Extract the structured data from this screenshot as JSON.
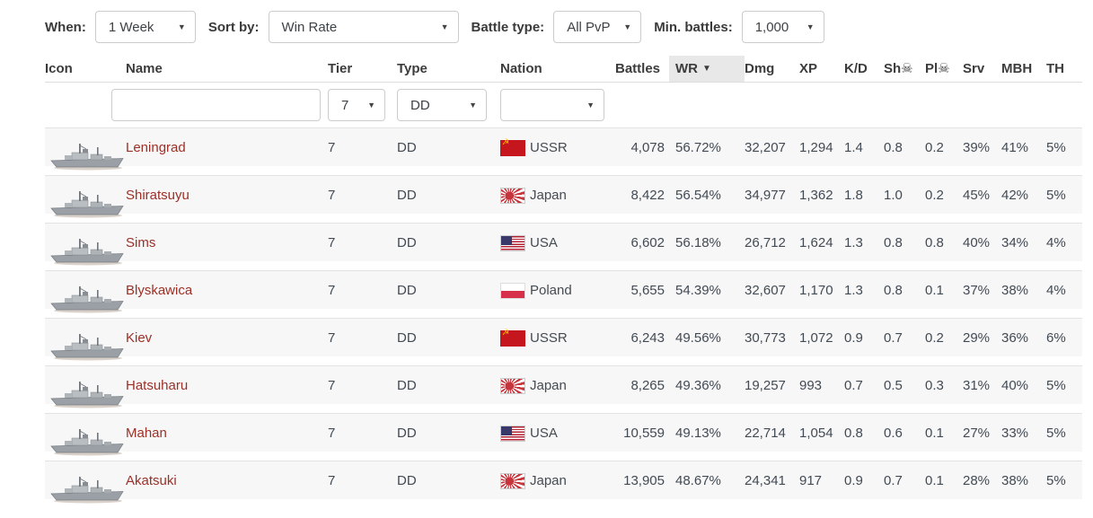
{
  "filters": {
    "when": {
      "label": "When:",
      "value": "1 Week"
    },
    "sort_by": {
      "label": "Sort by:",
      "value": "Win Rate"
    },
    "battle_type": {
      "label": "Battle type:",
      "value": "All PvP"
    },
    "min_battles": {
      "label": "Min. battles:",
      "value": "1,000"
    }
  },
  "icons": {
    "caret_down": "▼",
    "sort_desc": "▼",
    "skull": "☠"
  },
  "colors": {
    "ship_name": "#9c2f26",
    "row_background": "#f7f7f7",
    "sorted_header_background": "#e8e8e8",
    "ussr_flag_red": "#c6161d"
  },
  "table": {
    "columns": [
      {
        "key": "icon",
        "label": "Icon"
      },
      {
        "key": "name",
        "label": "Name"
      },
      {
        "key": "tier",
        "label": "Tier"
      },
      {
        "key": "type",
        "label": "Type"
      },
      {
        "key": "nation",
        "label": "Nation"
      },
      {
        "key": "battles",
        "label": "Battles"
      },
      {
        "key": "wr",
        "label": "WR",
        "sorted": true,
        "sort_icon": "▼"
      },
      {
        "key": "dmg",
        "label": "Dmg"
      },
      {
        "key": "xp",
        "label": "XP"
      },
      {
        "key": "kd",
        "label": "K/D"
      },
      {
        "key": "sh",
        "label": "Sh☠"
      },
      {
        "key": "pl",
        "label": "Pl☠"
      },
      {
        "key": "srv",
        "label": "Srv"
      },
      {
        "key": "mbh",
        "label": "MBH"
      },
      {
        "key": "th",
        "label": "TH"
      }
    ],
    "filter_row": {
      "name_value": "",
      "name_placeholder": "",
      "tier": "7",
      "type": "DD",
      "nation": ""
    },
    "rows": [
      {
        "name": "Leningrad",
        "tier": "7",
        "type": "DD",
        "nation": "USSR",
        "nation_key": "ussr",
        "battles": "4,078",
        "wr": "56.72%",
        "dmg": "32,207",
        "xp": "1,294",
        "kd": "1.4",
        "sh": "0.8",
        "pl": "0.2",
        "srv": "39%",
        "mbh": "41%",
        "th": "5%"
      },
      {
        "name": "Shiratsuyu",
        "tier": "7",
        "type": "DD",
        "nation": "Japan",
        "nation_key": "japan",
        "battles": "8,422",
        "wr": "56.54%",
        "dmg": "34,977",
        "xp": "1,362",
        "kd": "1.8",
        "sh": "1.0",
        "pl": "0.2",
        "srv": "45%",
        "mbh": "42%",
        "th": "5%"
      },
      {
        "name": "Sims",
        "tier": "7",
        "type": "DD",
        "nation": "USA",
        "nation_key": "usa",
        "battles": "6,602",
        "wr": "56.18%",
        "dmg": "26,712",
        "xp": "1,624",
        "kd": "1.3",
        "sh": "0.8",
        "pl": "0.8",
        "srv": "40%",
        "mbh": "34%",
        "th": "4%"
      },
      {
        "name": "Blyskawica",
        "tier": "7",
        "type": "DD",
        "nation": "Poland",
        "nation_key": "poland",
        "battles": "5,655",
        "wr": "54.39%",
        "dmg": "32,607",
        "xp": "1,170",
        "kd": "1.3",
        "sh": "0.8",
        "pl": "0.1",
        "srv": "37%",
        "mbh": "38%",
        "th": "4%"
      },
      {
        "name": "Kiev",
        "tier": "7",
        "type": "DD",
        "nation": "USSR",
        "nation_key": "ussr",
        "battles": "6,243",
        "wr": "49.56%",
        "dmg": "30,773",
        "xp": "1,072",
        "kd": "0.9",
        "sh": "0.7",
        "pl": "0.2",
        "srv": "29%",
        "mbh": "36%",
        "th": "6%"
      },
      {
        "name": "Hatsuharu",
        "tier": "7",
        "type": "DD",
        "nation": "Japan",
        "nation_key": "japan",
        "battles": "8,265",
        "wr": "49.36%",
        "dmg": "19,257",
        "xp": "993",
        "kd": "0.7",
        "sh": "0.5",
        "pl": "0.3",
        "srv": "31%",
        "mbh": "40%",
        "th": "5%"
      },
      {
        "name": "Mahan",
        "tier": "7",
        "type": "DD",
        "nation": "USA",
        "nation_key": "usa",
        "battles": "10,559",
        "wr": "49.13%",
        "dmg": "22,714",
        "xp": "1,054",
        "kd": "0.8",
        "sh": "0.6",
        "pl": "0.1",
        "srv": "27%",
        "mbh": "33%",
        "th": "5%"
      },
      {
        "name": "Akatsuki",
        "tier": "7",
        "type": "DD",
        "nation": "Japan",
        "nation_key": "japan",
        "battles": "13,905",
        "wr": "48.67%",
        "dmg": "24,341",
        "xp": "917",
        "kd": "0.9",
        "sh": "0.7",
        "pl": "0.1",
        "srv": "28%",
        "mbh": "38%",
        "th": "5%"
      }
    ]
  }
}
